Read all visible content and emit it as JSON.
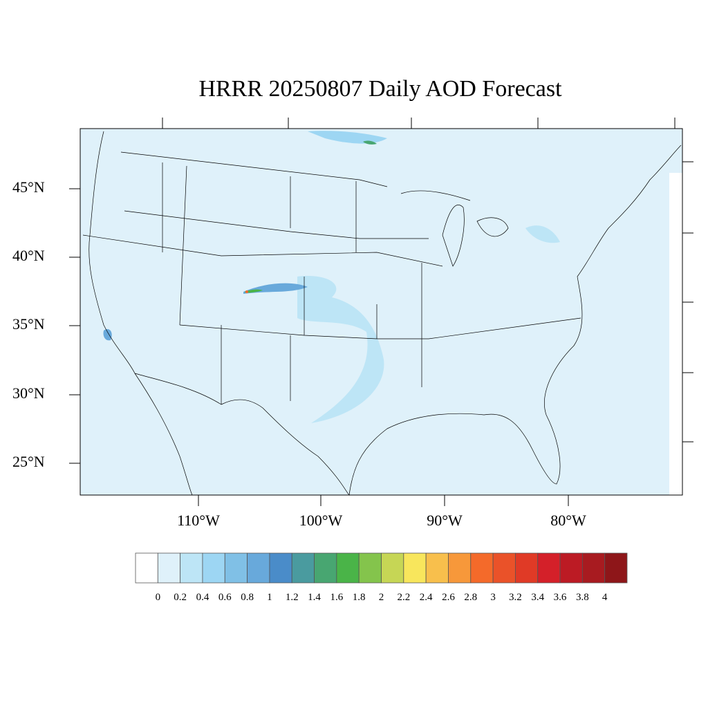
{
  "title": "HRRR 20250807 Daily AOD Forecast",
  "map": {
    "background_color": "#dff1fa",
    "lat_labels": [
      "45°N",
      "40°N",
      "35°N",
      "30°N",
      "25°N"
    ],
    "lon_labels": [
      "110°W",
      "100°W",
      "90°W",
      "80°W"
    ]
  },
  "colorbar": {
    "labels": [
      "0",
      "0.2",
      "0.4",
      "0.6",
      "0.8",
      "1",
      "1.2",
      "1.4",
      "1.6",
      "1.8",
      "2",
      "2.2",
      "2.4",
      "2.6",
      "2.8",
      "3",
      "3.2",
      "3.4",
      "3.6",
      "3.8",
      "4"
    ],
    "colors": [
      "#ffffff",
      "#dff1fa",
      "#bde5f6",
      "#9dd6f3",
      "#80c0e6",
      "#68a9db",
      "#4a8cc9",
      "#4a9b9f",
      "#48a671",
      "#4ab448",
      "#84c44c",
      "#c6d655",
      "#f8e65c",
      "#f8bf4c",
      "#f7983a",
      "#f46a2a",
      "#ea5229",
      "#e03a26",
      "#d42029",
      "#bc1b24",
      "#a81b20",
      "#8e1619"
    ]
  }
}
